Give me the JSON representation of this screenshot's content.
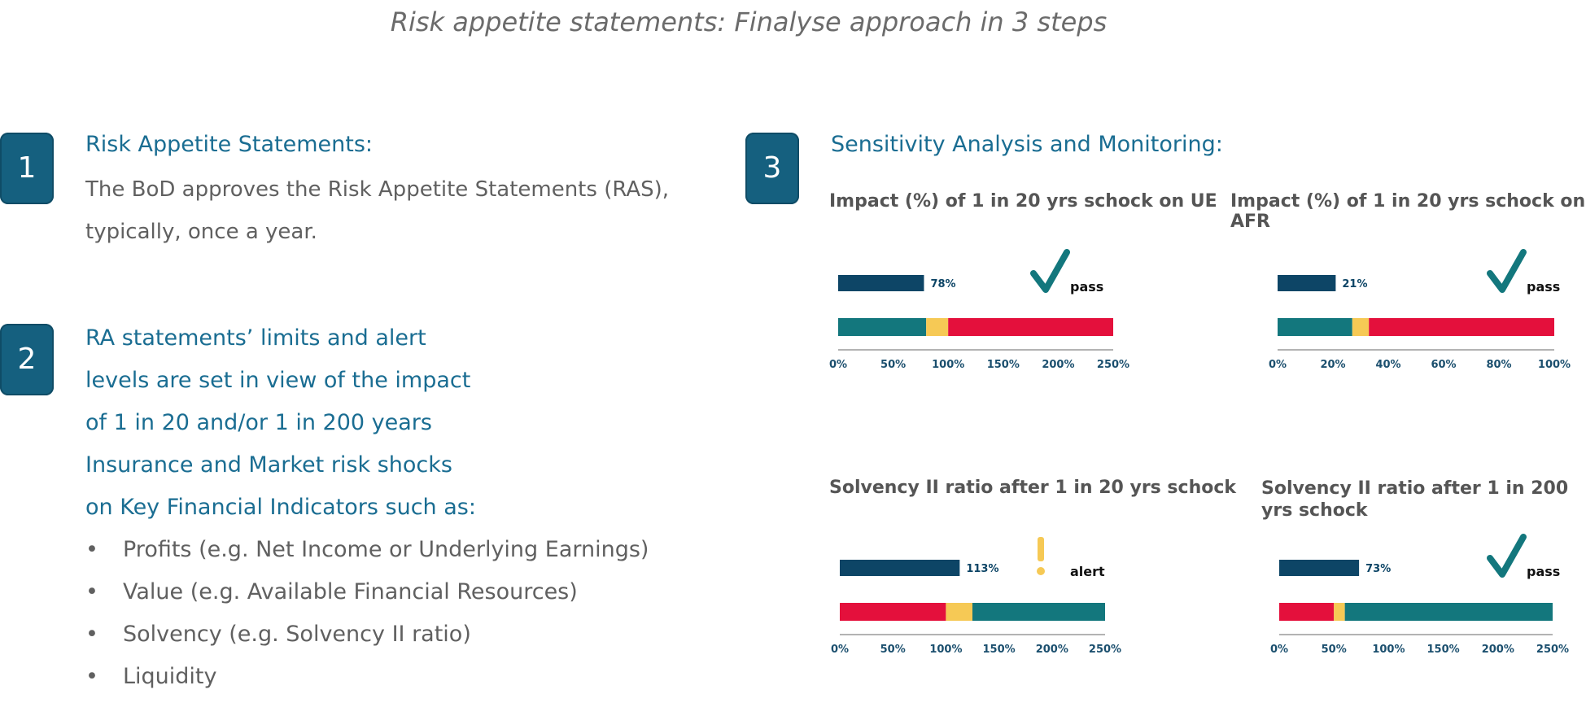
{
  "title": "Risk appetite statements: Finalyse approach in 3 steps",
  "step1": {
    "number": "1",
    "heading": "Risk Appetite Statements:",
    "line1": "The BoD approves the Risk Appetite Statements (RAS),",
    "line2": "typically, once a year."
  },
  "step2": {
    "number": "2",
    "lines": [
      "RA statements’ limits and alert",
      "levels are set in view of the impact",
      "of 1 in 20 and/or 1 in 200 years",
      "Insurance and Market risk shocks",
      "on Key Financial Indicators such as:"
    ],
    "bullet_char": "•",
    "bullets": [
      "Profits (e.g. Net Income or Underlying Earnings)",
      "Value (e.g. Available Financial Resources)",
      "Solvency (e.g. Solvency II ratio)",
      "Liquidity"
    ]
  },
  "step3": {
    "number": "3",
    "heading": "Sensitivity Analysis and Monitoring:"
  },
  "colors": {
    "dark_bar": "#0d4566",
    "teal": "#13777d",
    "yellow": "#f6c955",
    "red": "#e4103c",
    "check": "#13777d",
    "alert": "#f6c955"
  },
  "chart_data": [
    {
      "type": "bar",
      "title": "Impact (%) of 1 in 20 yrs schock on UE",
      "value": 78,
      "value_label": "78%",
      "status": "pass",
      "status_icon": "check-icon",
      "xlim": [
        0,
        250
      ],
      "ticks": [
        "0%",
        "50%",
        "100%",
        "150%",
        "200%",
        "250%"
      ],
      "zones": [
        {
          "color": "teal",
          "from": 0,
          "to": 80
        },
        {
          "color": "yellow",
          "from": 80,
          "to": 100
        },
        {
          "color": "red",
          "from": 100,
          "to": 250
        }
      ]
    },
    {
      "type": "bar",
      "title": "Impact (%) of 1 in 20 yrs schock on AFR",
      "value": 21,
      "value_label": "21%",
      "status": "pass",
      "status_icon": "check-icon",
      "xlim": [
        0,
        100
      ],
      "ticks": [
        "0%",
        "20%",
        "40%",
        "60%",
        "80%",
        "100%"
      ],
      "zones": [
        {
          "color": "teal",
          "from": 0,
          "to": 27
        },
        {
          "color": "yellow",
          "from": 27,
          "to": 33
        },
        {
          "color": "red",
          "from": 33,
          "to": 100
        }
      ]
    },
    {
      "type": "bar",
      "title": "Solvency II ratio after 1 in 20 yrs schock",
      "value": 113,
      "value_label": "113%",
      "status": "alert",
      "status_icon": "exclamation-icon",
      "xlim": [
        0,
        250
      ],
      "ticks": [
        "0%",
        "50%",
        "100%",
        "150%",
        "200%",
        "250%"
      ],
      "zones": [
        {
          "color": "red",
          "from": 0,
          "to": 100
        },
        {
          "color": "yellow",
          "from": 100,
          "to": 125
        },
        {
          "color": "teal",
          "from": 125,
          "to": 250
        }
      ]
    },
    {
      "type": "bar",
      "title": "Solvency II ratio after 1 in 200 yrs schock",
      "value": 73,
      "value_label": "73%",
      "status": "pass",
      "status_icon": "check-icon",
      "xlim": [
        0,
        250
      ],
      "ticks": [
        "0%",
        "50%",
        "100%",
        "150%",
        "200%",
        "250%"
      ],
      "zones": [
        {
          "color": "red",
          "from": 0,
          "to": 50
        },
        {
          "color": "yellow",
          "from": 50,
          "to": 60
        },
        {
          "color": "teal",
          "from": 60,
          "to": 250
        }
      ]
    }
  ]
}
